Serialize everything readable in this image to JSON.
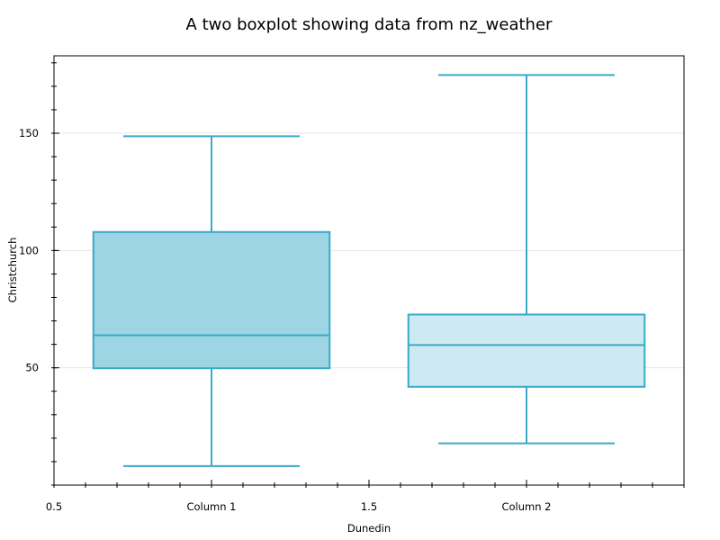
{
  "chart_data": {
    "type": "boxplot",
    "title": "A two boxplot showing data from nz_weather",
    "xlabel": "Dunedin",
    "ylabel": "Christchurch",
    "xlim": [
      0.5,
      2.5
    ],
    "ylim": [
      0,
      183
    ],
    "x_ticks": [
      {
        "value": 0.5,
        "label": "0.5"
      },
      {
        "value": 1,
        "label": "Column 1"
      },
      {
        "value": 1.5,
        "label": "1.5"
      },
      {
        "value": 2,
        "label": "Column 2"
      }
    ],
    "y_ticks": [
      {
        "value": 50,
        "label": "50"
      },
      {
        "value": 100,
        "label": "100"
      },
      {
        "value": 150,
        "label": "150"
      }
    ],
    "grid": "horizontal",
    "boxes": [
      {
        "name": "Column 1",
        "position": 1,
        "whisker_low": 8.1,
        "q1": 49.8,
        "median": 63.9,
        "q3": 107.9,
        "whisker_high": 148.7,
        "fill": "#9dd5e4"
      },
      {
        "name": "Column 2",
        "position": 2,
        "whisker_low": 17.8,
        "q1": 41.9,
        "median": 59.7,
        "q3": 72.7,
        "whisker_high": 174.8,
        "fill": "#cde9f2"
      }
    ],
    "colors": {
      "stroke": "#3aaac8",
      "grid": "#e6e6e6",
      "axes": "#000000"
    }
  }
}
